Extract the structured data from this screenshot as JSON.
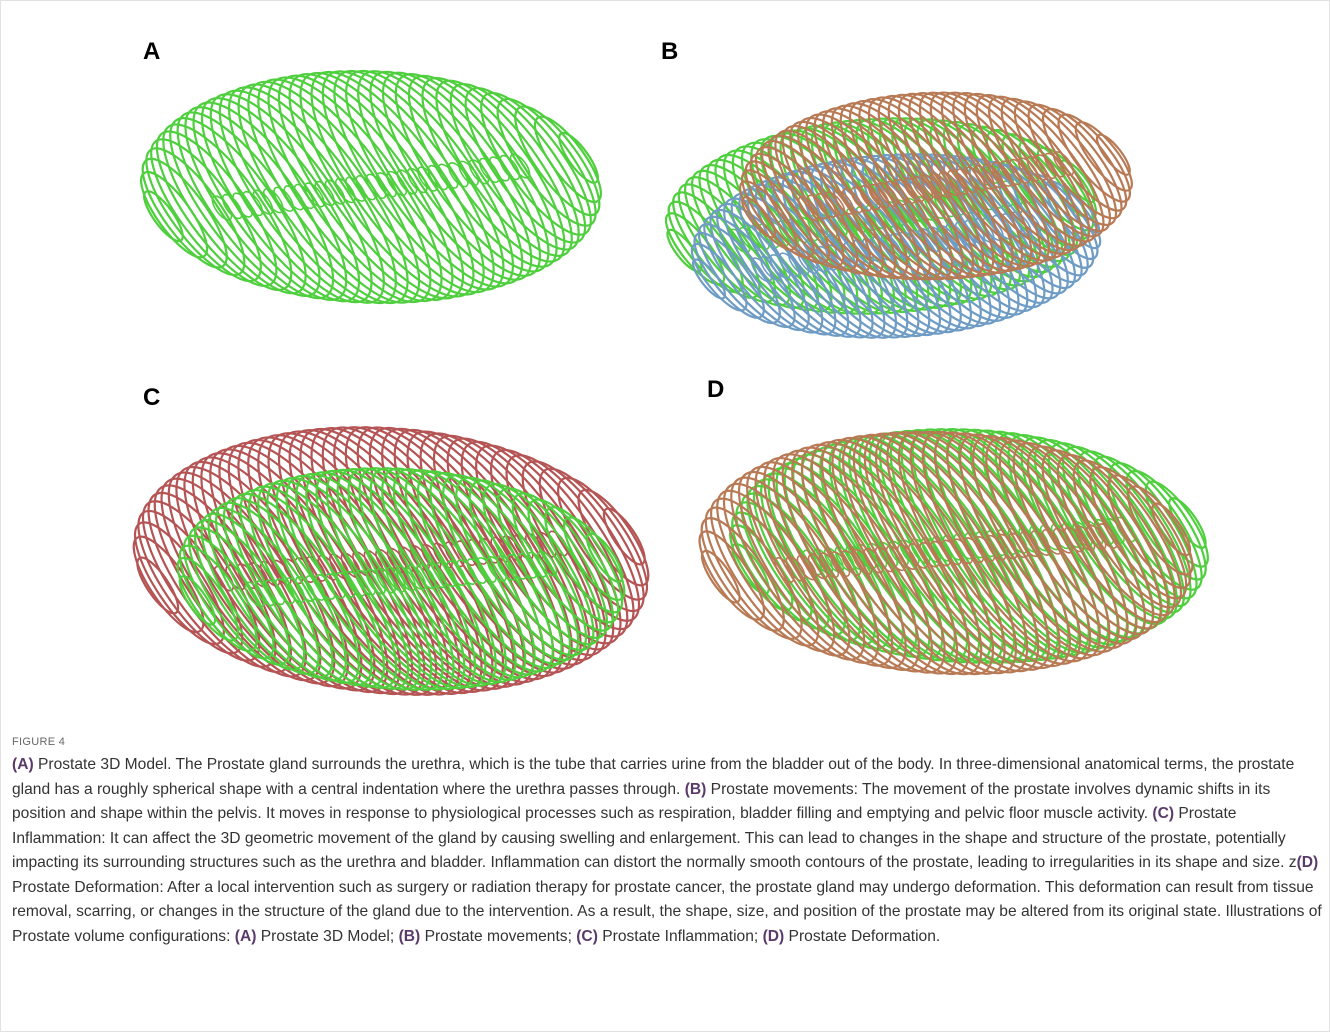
{
  "panels": [
    {
      "label": "A"
    },
    {
      "label": "B"
    },
    {
      "label": "C"
    },
    {
      "label": "D"
    }
  ],
  "figure_label": "FIGURE 4",
  "caption": [
    {
      "text": "(A)",
      "bold": true
    },
    {
      "text": " Prostate 3D Model. The Prostate gland surrounds the urethra, which is the tube that carries urine from the bladder out of the body. In three-dimensional anatomical terms, the prostate gland has a roughly spherical shape with a central indentation where the urethra passes through. ",
      "bold": false
    },
    {
      "text": "(B)",
      "bold": true
    },
    {
      "text": " Prostate movements: The movement of the prostate involves dynamic shifts in its position and shape within the pelvis. It moves in response to physiological processes such as respiration, bladder filling and emptying and pelvic floor muscle activity. ",
      "bold": false
    },
    {
      "text": "(C)",
      "bold": true
    },
    {
      "text": " Prostate Inflammation: It can affect the 3D geometric movement of the gland by causing swelling and enlargement. This can lead to changes in the shape and structure of the prostate, potentially impacting its surrounding structures such as the urethra and bladder. Inflammation can distort the normally smooth contours of the prostate, leading to irregularities in its shape and size. z",
      "bold": false
    },
    {
      "text": "(D)",
      "bold": true
    },
    {
      "text": " Prostate Deformation: After a local intervention such as surgery or radiation therapy for prostate cancer, the prostate gland may undergo deformation. This deformation can result from tissue removal, scarring, or changes in the structure of the gland due to the intervention. As a result, the shape, size, and position of the prostate may be altered from its original state. Illustrations of Prostate volume configurations: ",
      "bold": false
    },
    {
      "text": "(A)",
      "bold": true
    },
    {
      "text": " Prostate 3D Model; ",
      "bold": false
    },
    {
      "text": "(B)",
      "bold": true
    },
    {
      "text": " Prostate movements; ",
      "bold": false
    },
    {
      "text": "(C)",
      "bold": true
    },
    {
      "text": " Prostate Inflammation; ",
      "bold": false
    },
    {
      "text": "(D)",
      "bold": true
    },
    {
      "text": " Prostate Deformation.",
      "bold": false
    }
  ]
}
